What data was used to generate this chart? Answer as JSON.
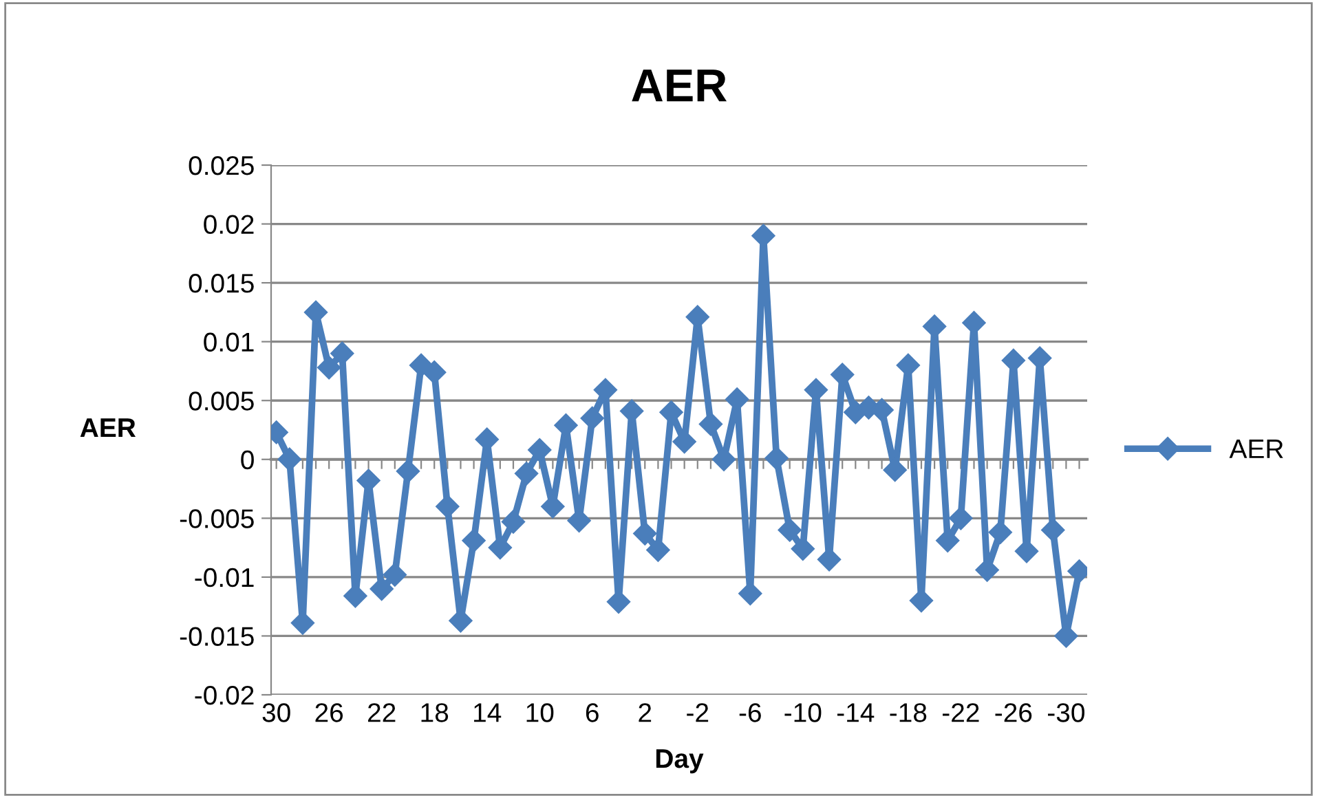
{
  "chart_data": {
    "type": "line",
    "title": "AER",
    "xlabel": "Day",
    "ylabel": "AER",
    "categories": [
      "30",
      null,
      null,
      null,
      "26",
      null,
      null,
      null,
      "22",
      null,
      null,
      null,
      "18",
      null,
      null,
      null,
      "14",
      null,
      null,
      null,
      "10",
      null,
      null,
      null,
      "6",
      null,
      null,
      null,
      "2",
      null,
      null,
      null,
      "-2",
      null,
      null,
      null,
      "-6",
      null,
      null,
      null,
      "-10",
      null,
      null,
      null,
      "-14",
      null,
      null,
      null,
      "-18",
      null,
      null,
      null,
      "-22",
      null,
      null,
      null,
      "-26",
      null,
      null,
      null,
      "-30",
      null
    ],
    "series": [
      {
        "name": "AER",
        "color": "#4a7ebb",
        "values": [
          0.0023,
          0,
          -0.0139,
          0.0125,
          0.0078,
          0.009,
          -0.0116,
          -0.0018,
          -0.011,
          -0.0098,
          -0.001,
          0.008,
          0.0074,
          -0.004,
          -0.0137,
          -0.0069,
          0.0017,
          -0.0075,
          -0.0053,
          -0.0012,
          0.0008,
          -0.004,
          0.0029,
          -0.0052,
          0.0035,
          0.0059,
          -0.0121,
          0.0041,
          -0.0063,
          -0.0077,
          0.004,
          0.0015,
          0.0121,
          0.003,
          0,
          0.0051,
          -0.0114,
          0.019,
          0.0001,
          -0.006,
          -0.0076,
          0.0059,
          -0.0085,
          0.0072,
          0.004,
          0.0044,
          0.0042,
          -0.0009,
          0.008,
          -0.012,
          0.0113,
          -0.0069,
          -0.005,
          0.0116,
          -0.0094,
          -0.0062,
          0.0084,
          -0.0078,
          0.0086,
          -0.006,
          -0.015,
          -0.0095
        ]
      }
    ],
    "ylim": [
      -0.02,
      0.025
    ],
    "yticks": [
      -0.02,
      -0.015,
      -0.01,
      -0.005,
      0,
      0.005,
      0.01,
      0.015,
      0.02,
      0.025
    ],
    "grid": "y",
    "legend": "right",
    "marker": "diamond",
    "line_style": "solid"
  }
}
